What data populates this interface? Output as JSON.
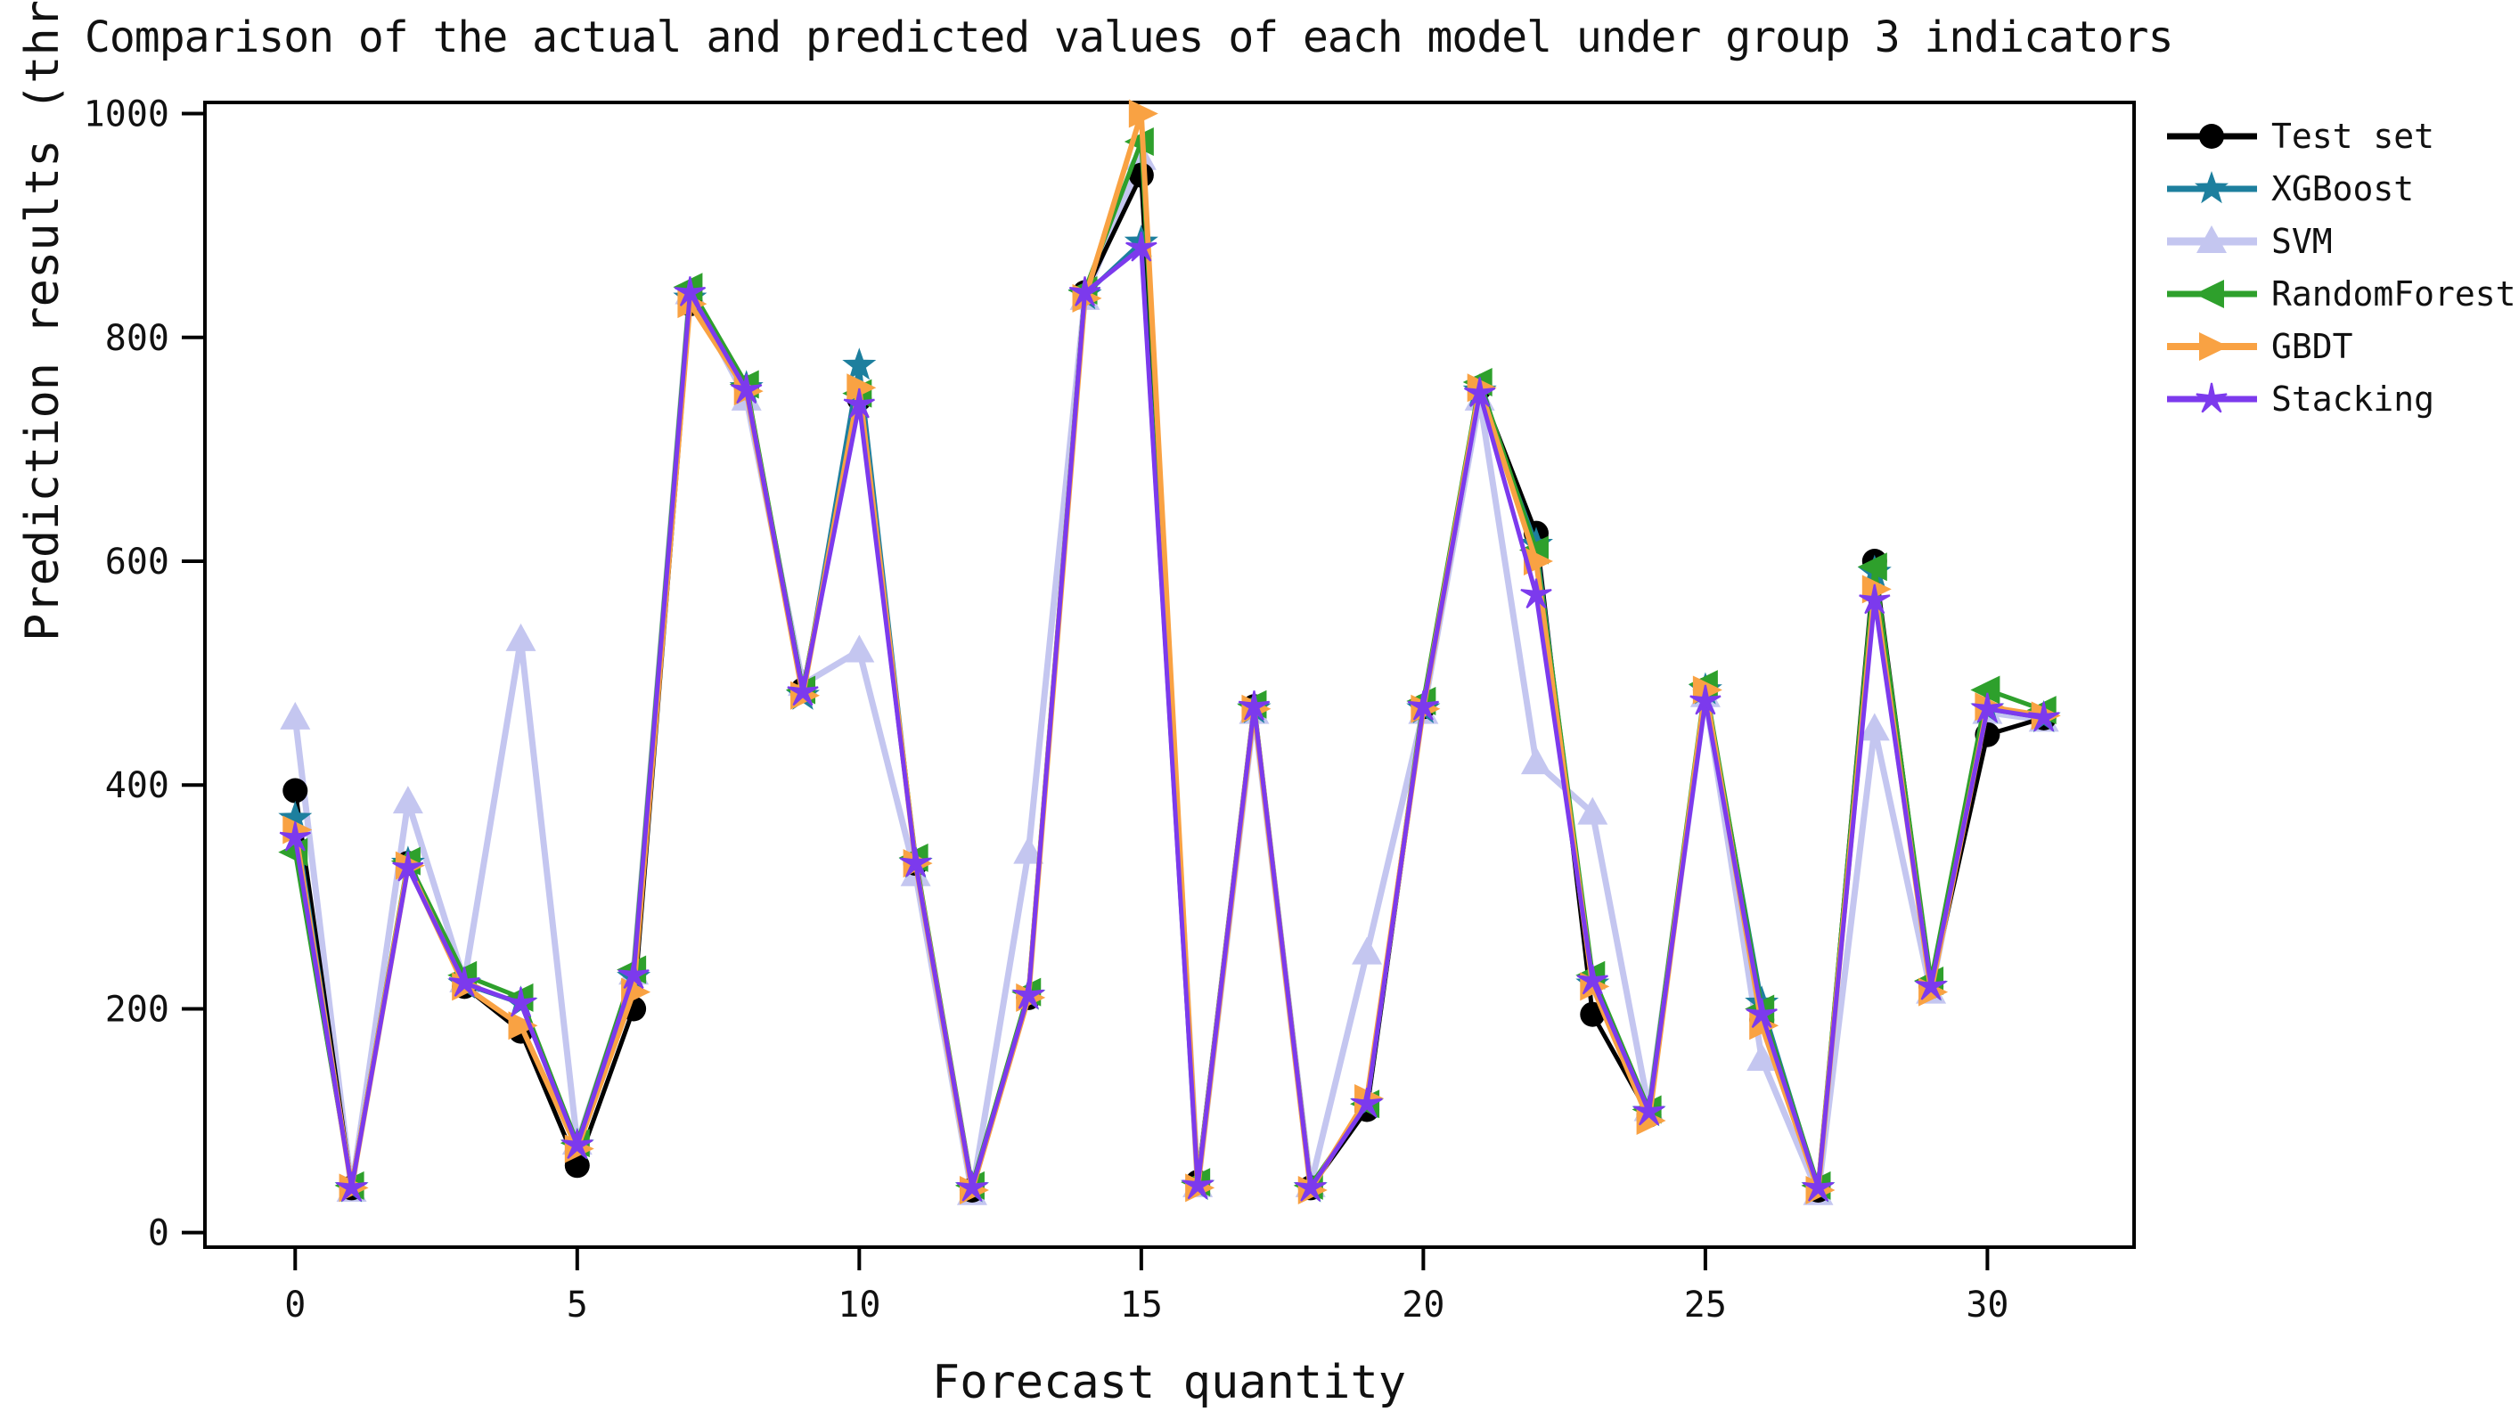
{
  "title": "Comparison of the actual and predicted values of each model under group 3 indicators",
  "chart_data": {
    "type": "line",
    "title": "Comparison of the actual and predicted values of each model under group 3 indicators",
    "xlabel": "Forecast quantity",
    "ylabel": "Prediction results (throws)",
    "x_ticks": [
      0,
      5,
      10,
      15,
      20,
      25,
      30
    ],
    "y_ticks": [
      0,
      200,
      400,
      600,
      800,
      1000
    ],
    "xlim": [
      -1.6,
      32.6
    ],
    "ylim": [
      -13,
      1010
    ],
    "grid": false,
    "legend_position": "upper-right-outside",
    "x": [
      0,
      1,
      2,
      3,
      4,
      5,
      6,
      7,
      8,
      9,
      10,
      11,
      12,
      13,
      14,
      15,
      16,
      17,
      18,
      19,
      20,
      21,
      22,
      23,
      24,
      25,
      26,
      27,
      28,
      29,
      30,
      31
    ],
    "series": [
      {
        "name": "Test set",
        "color": "#000000",
        "marker": "circle",
        "line_width": 5,
        "values": [
          395,
          40,
          330,
          220,
          180,
          60,
          200,
          830,
          755,
          485,
          745,
          330,
          38,
          210,
          840,
          945,
          45,
          470,
          40,
          110,
          470,
          755,
          625,
          195,
          105,
          485,
          190,
          38,
          600,
          220,
          445,
          460
        ]
      },
      {
        "name": "XGBoost",
        "color": "#1d7f9e",
        "marker": "star",
        "line_width": 5,
        "values": [
          370,
          40,
          330,
          222,
          205,
          78,
          228,
          835,
          755,
          480,
          775,
          330,
          40,
          212,
          838,
          885,
          42,
          468,
          40,
          115,
          468,
          752,
          615,
          222,
          108,
          485,
          205,
          40,
          590,
          220,
          468,
          460
        ]
      },
      {
        "name": "SVM",
        "color": "#c4c6f0",
        "marker": "triangle-up",
        "line_width": 7,
        "values": [
          460,
          38,
          385,
          225,
          530,
          80,
          232,
          840,
          745,
          490,
          520,
          320,
          35,
          340,
          835,
          960,
          42,
          465,
          42,
          250,
          465,
          745,
          420,
          375,
          110,
          480,
          155,
          35,
          450,
          215,
          465,
          458
        ]
      },
      {
        "name": "RandomForest",
        "color": "#2ea02c",
        "marker": "triangle-left",
        "line_width": 5,
        "values": [
          340,
          42,
          332,
          230,
          210,
          80,
          235,
          845,
          758,
          485,
          750,
          335,
          42,
          215,
          842,
          975,
          45,
          472,
          42,
          115,
          475,
          760,
          610,
          230,
          110,
          490,
          200,
          42,
          595,
          225,
          485,
          467
        ]
      },
      {
        "name": "GBDT",
        "color": "#f9a243",
        "marker": "triangle-right",
        "line_width": 6,
        "values": [
          360,
          40,
          328,
          220,
          185,
          75,
          215,
          830,
          752,
          480,
          755,
          330,
          38,
          210,
          835,
          1000,
          40,
          468,
          38,
          120,
          468,
          755,
          600,
          220,
          100,
          485,
          185,
          38,
          575,
          215,
          470,
          462
        ]
      },
      {
        "name": "Stacking",
        "color": "#7c3aed",
        "marker": "star-thin",
        "line_width": 5,
        "values": [
          353,
          40,
          326,
          223,
          205,
          78,
          230,
          840,
          753,
          483,
          740,
          330,
          40,
          212,
          840,
          880,
          42,
          470,
          40,
          115,
          470,
          750,
          570,
          225,
          108,
          475,
          195,
          40,
          565,
          220,
          468,
          460
        ]
      }
    ]
  }
}
